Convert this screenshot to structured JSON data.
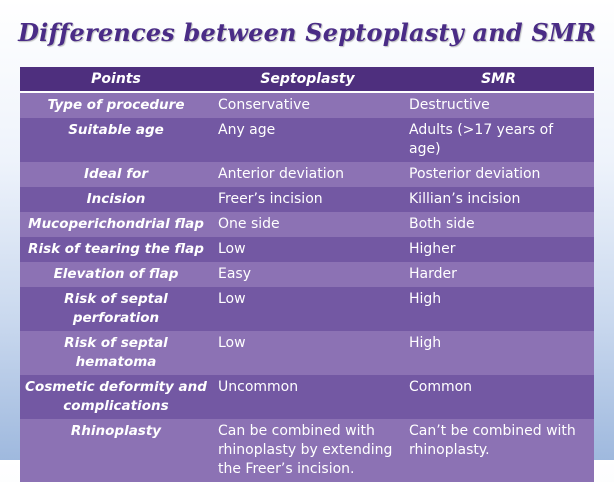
{
  "title": "Differences between Septoplasty and SMR",
  "table": {
    "headers": [
      "Points",
      "Septoplasty",
      "SMR"
    ],
    "rows": [
      [
        "Type of procedure",
        "Conservative",
        "Destructive"
      ],
      [
        "Suitable age",
        "Any age",
        "Adults (>17 years of age)"
      ],
      [
        "Ideal for",
        "Anterior deviation",
        "Posterior deviation"
      ],
      [
        "Incision",
        "Freer’s incision",
        "Killian’s incision"
      ],
      [
        "Mucoperichondrial flap",
        "One side",
        "Both side"
      ],
      [
        "Risk of tearing the flap",
        "Low",
        "Higher"
      ],
      [
        "Elevation of flap",
        "Easy",
        "Harder"
      ],
      [
        "Risk of septal perforation",
        "Low",
        "High"
      ],
      [
        "Risk of septal hematoma",
        "Low",
        "High"
      ],
      [
        "Cosmetic deformity and complications",
        "Uncommon",
        "Common"
      ],
      [
        "Rhinoplasty",
        "Can be combined with rhinoplasty by extending the Freer’s incision.",
        "Can’t be combined with rhinoplasty."
      ]
    ]
  }
}
